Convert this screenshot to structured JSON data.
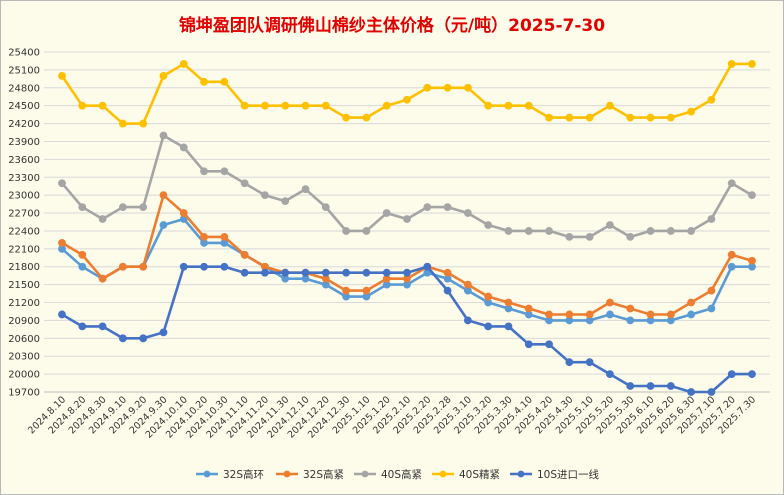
{
  "chart_data": {
    "type": "line",
    "title": "锦坤盈团队调研佛山棉纱主体价格（元/吨）2025-7-30",
    "xlabel": "",
    "ylabel": "",
    "ylim": [
      19700,
      25400
    ],
    "y_ticks": [
      19700,
      20000,
      20300,
      20600,
      20900,
      21200,
      21500,
      21800,
      22100,
      22400,
      22700,
      23000,
      23300,
      23600,
      23900,
      24200,
      24500,
      24800,
      25100,
      25400
    ],
    "grid": true,
    "legend_position": "bottom",
    "categories": [
      "2024.8.10",
      "2024.8.20",
      "2024.8.30",
      "2024.9.10",
      "2024.9.20",
      "2024.9.30",
      "2024.10.10",
      "2024.10.20",
      "2024.10.30",
      "2024.11.10",
      "2024.11.20",
      "2024.11.30",
      "2024.12.10",
      "2024.12.20",
      "2024.12.30",
      "2025.1.10",
      "2025.1.20",
      "2025.2.10",
      "2025.2.20",
      "2025.2.28",
      "2025.3.10",
      "2025.3.20",
      "2025.3.30",
      "2025.4.10",
      "2025.4.20",
      "2025.4.30",
      "2025.5.10",
      "2025.5.20",
      "2025.5.30",
      "2025.6.10",
      "2025.6.20",
      "2025.6.30",
      "2025.7.10",
      "2025.7.20",
      "2025.7.30"
    ],
    "series": [
      {
        "name": "32S高环",
        "color": "#5b9bd5",
        "values": [
          22100,
          21800,
          21600,
          21800,
          21800,
          22500,
          22600,
          22200,
          22200,
          22000,
          21800,
          21600,
          21600,
          21500,
          21300,
          21300,
          21500,
          21500,
          21700,
          21600,
          21400,
          21200,
          21100,
          21000,
          20900,
          20900,
          20900,
          21000,
          20900,
          20900,
          20900,
          21000,
          21100,
          21800,
          21800
        ]
      },
      {
        "name": "32S高紧",
        "color": "#ed7d31",
        "values": [
          22200,
          22000,
          21600,
          21800,
          21800,
          23000,
          22700,
          22300,
          22300,
          22000,
          21800,
          21700,
          21700,
          21600,
          21400,
          21400,
          21600,
          21600,
          21800,
          21700,
          21500,
          21300,
          21200,
          21100,
          21000,
          21000,
          21000,
          21200,
          21100,
          21000,
          21000,
          21200,
          21400,
          22000,
          21900
        ]
      },
      {
        "name": "40S高紧",
        "color": "#a5a5a5",
        "values": [
          23200,
          22800,
          22600,
          22800,
          22800,
          24000,
          23800,
          23400,
          23400,
          23200,
          23000,
          22900,
          23100,
          22800,
          22400,
          22400,
          22700,
          22600,
          22800,
          22800,
          22700,
          22500,
          22400,
          22400,
          22400,
          22300,
          22300,
          22500,
          22300,
          22400,
          22400,
          22400,
          22600,
          23200,
          23000
        ]
      },
      {
        "name": "40S精紧",
        "color": "#ffc000",
        "values": [
          25000,
          24500,
          24500,
          24200,
          24200,
          25000,
          25200,
          24900,
          24900,
          24500,
          24500,
          24500,
          24500,
          24500,
          24300,
          24300,
          24500,
          24600,
          24800,
          24800,
          24800,
          24500,
          24500,
          24500,
          24300,
          24300,
          24300,
          24500,
          24300,
          24300,
          24300,
          24400,
          24600,
          25200,
          25200
        ]
      },
      {
        "name": "10S进口一线",
        "color": "#4472c4",
        "values": [
          21000,
          20800,
          20800,
          20600,
          20600,
          20700,
          21800,
          21800,
          21800,
          21700,
          21700,
          21700,
          21700,
          21700,
          21700,
          21700,
          21700,
          21700,
          21800,
          21400,
          20900,
          20800,
          20800,
          20500,
          20500,
          20200,
          20200,
          20000,
          19800,
          19800,
          19800,
          19700,
          19700,
          20000,
          20000
        ]
      }
    ]
  }
}
